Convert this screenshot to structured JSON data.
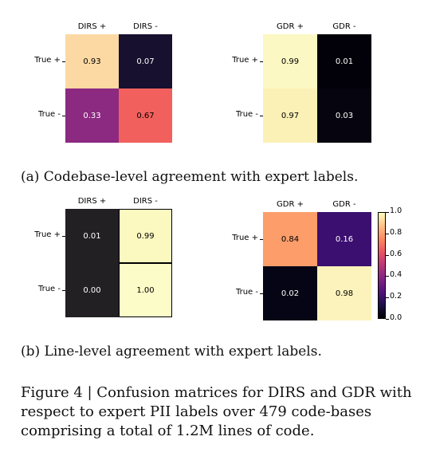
{
  "chart_data": [
    {
      "type": "heatmap",
      "columns": [
        "DIRS +",
        "DIRS -"
      ],
      "rows": [
        "True +",
        "True -"
      ],
      "values": [
        [
          0.93,
          0.07
        ],
        [
          0.33,
          0.67
        ]
      ],
      "labels": [
        [
          "0.93",
          "0.07"
        ],
        [
          "0.33",
          "0.67"
        ]
      ],
      "colormap": "magma",
      "colors": [
        [
          "#fcd9a3",
          "#17102f"
        ],
        [
          "#8c2981",
          "#f1605d"
        ]
      ]
    },
    {
      "type": "heatmap",
      "columns": [
        "GDR +",
        "GDR -"
      ],
      "rows": [
        "True +",
        "True -"
      ],
      "values": [
        [
          0.99,
          0.01
        ],
        [
          0.97,
          0.03
        ]
      ],
      "labels": [
        [
          "0.99",
          "0.01"
        ],
        [
          "0.97",
          "0.03"
        ]
      ],
      "colormap": "magma",
      "colors": [
        [
          "#fcf8c3",
          "#020109"
        ],
        [
          "#fbf1b6",
          "#05040f"
        ]
      ]
    },
    {
      "type": "heatmap",
      "columns": [
        "DIRS +",
        "DIRS -"
      ],
      "rows": [
        "True +",
        "True -"
      ],
      "values": [
        [
          0.01,
          0.99
        ],
        [
          0.0,
          1.0
        ]
      ],
      "labels": [
        [
          "0.01",
          "0.99"
        ],
        [
          "0.00",
          "1.00"
        ]
      ],
      "colormap": "magma",
      "colors": [
        [
          "#232024",
          "#fbf8c0"
        ],
        [
          "#232024",
          "#fcfcc8"
        ]
      ]
    },
    {
      "type": "heatmap",
      "columns": [
        "GDR +",
        "GDR -"
      ],
      "rows": [
        "True +",
        "True -"
      ],
      "values": [
        [
          0.84,
          0.16
        ],
        [
          0.02,
          0.98
        ]
      ],
      "labels": [
        [
          "0.84",
          "0.16"
        ],
        [
          "0.02",
          "0.98"
        ]
      ],
      "colormap": "magma",
      "colors": [
        [
          "#fc9d6a",
          "#3b0f70"
        ],
        [
          "#060515",
          "#fbf3bb"
        ]
      ],
      "colorbar": {
        "min": 0.0,
        "max": 1.0,
        "ticks": [
          "0.0",
          "0.2",
          "0.4",
          "0.6",
          "0.8",
          "1.0"
        ]
      }
    }
  ],
  "captions": {
    "a": "(a) Codebase-level agreement with expert labels.",
    "b": "(b) Line-level agreement with expert labels.",
    "figure": "Figure 4 | Confusion matrices for DIRS and GDR with respect to expert PII labels over 479 code-bases comprising a total of 1.2M lines of code."
  }
}
